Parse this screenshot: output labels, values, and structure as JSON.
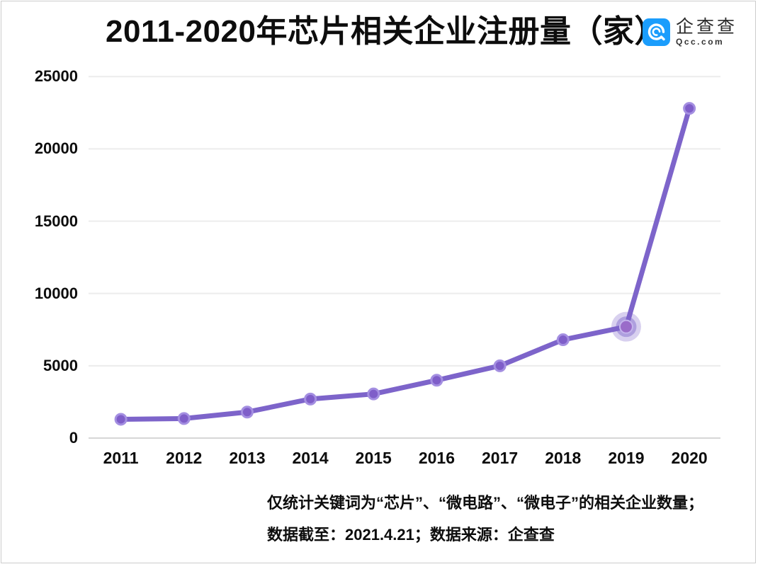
{
  "header": {
    "title": "2011-2020年芯片相关企业注册量（家）",
    "logo": {
      "name": "企查查",
      "domain": "Qcc.com",
      "brand_color": "#1b9dfc",
      "icon": "qcc-spiral-at-icon"
    }
  },
  "chart_data": {
    "type": "line",
    "title": "2011-2020年芯片相关企业注册量（家）",
    "xlabel": "",
    "ylabel": "",
    "categories": [
      "2011",
      "2012",
      "2013",
      "2014",
      "2015",
      "2016",
      "2017",
      "2018",
      "2019",
      "2020"
    ],
    "series": [
      {
        "name": "芯片相关企业注册量",
        "values": [
          1300,
          1350,
          1800,
          2700,
          3050,
          4000,
          5000,
          6800,
          7700,
          22800
        ]
      }
    ],
    "ylim": [
      0,
      25000
    ],
    "yticks": [
      0,
      5000,
      10000,
      15000,
      20000,
      25000
    ],
    "grid": true,
    "legend_position": "none",
    "highlight_index": 8,
    "colors": {
      "line": "#7d64ca",
      "marker_fill": "#7f5ec9",
      "marker_stroke": "#a48fe1",
      "highlight_core": "#9a6cc9",
      "highlight_core_stroke": "#c4b4ec",
      "highlight_halo": "#7d64ca",
      "grid": "#ececec",
      "axis": "#d6d6d6"
    }
  },
  "footer": {
    "line1": "仅统计关键词为“芯片”、“微电路”、“微电子”的相关企业数量；",
    "line2": "数据截至：2021.4.21；数据来源：企查查"
  }
}
